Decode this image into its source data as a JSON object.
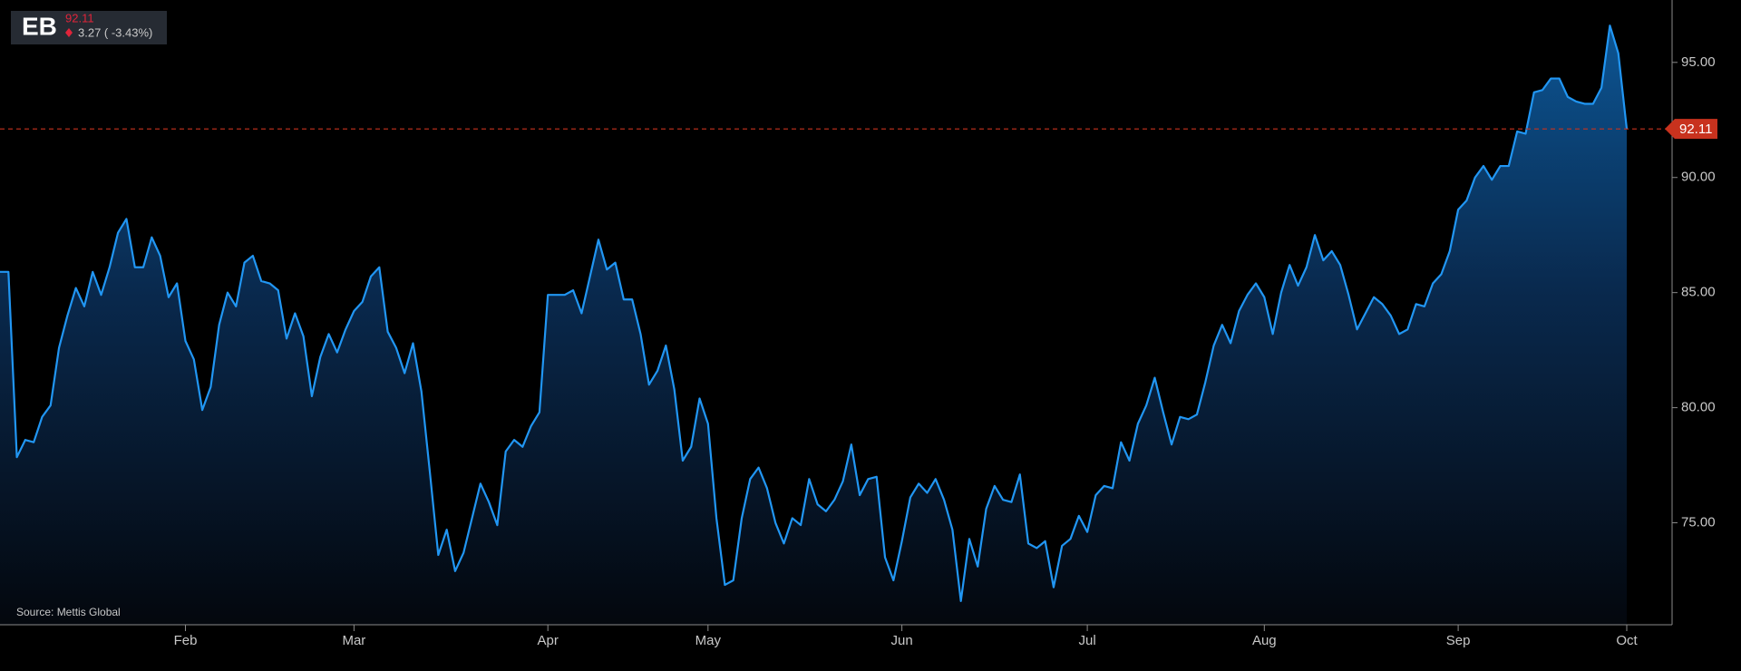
{
  "header": {
    "symbol": "EB",
    "price": "92.11",
    "change": "3.27 ( -3.43%)"
  },
  "chart_data": {
    "type": "area",
    "source": "Source: Mettis Global",
    "categories": [
      null,
      null,
      null,
      null,
      null,
      null,
      null,
      null,
      null,
      null,
      null,
      null,
      null,
      null,
      null,
      null,
      null,
      null,
      null,
      null,
      null,
      null,
      "Feb",
      null,
      null,
      null,
      null,
      null,
      null,
      null,
      null,
      null,
      null,
      null,
      null,
      null,
      null,
      null,
      null,
      null,
      null,
      null,
      "Mar",
      null,
      null,
      null,
      null,
      null,
      null,
      null,
      null,
      null,
      null,
      null,
      null,
      null,
      null,
      null,
      null,
      null,
      null,
      null,
      null,
      null,
      null,
      "Apr",
      null,
      null,
      null,
      null,
      null,
      null,
      null,
      null,
      null,
      null,
      null,
      null,
      null,
      null,
      null,
      null,
      null,
      null,
      "May",
      null,
      null,
      null,
      null,
      null,
      null,
      null,
      null,
      null,
      null,
      null,
      null,
      null,
      null,
      null,
      null,
      null,
      null,
      null,
      null,
      null,
      null,
      "Jun",
      null,
      null,
      null,
      null,
      null,
      null,
      null,
      null,
      null,
      null,
      null,
      null,
      null,
      null,
      null,
      null,
      null,
      null,
      null,
      null,
      null,
      "Jul",
      null,
      null,
      null,
      null,
      null,
      null,
      null,
      null,
      null,
      null,
      null,
      null,
      null,
      null,
      null,
      null,
      null,
      null,
      null,
      null,
      "Aug",
      null,
      null,
      null,
      null,
      null,
      null,
      null,
      null,
      null,
      null,
      null,
      null,
      null,
      null,
      null,
      null,
      null,
      null,
      null,
      null,
      null,
      null,
      "Sep",
      null,
      null,
      null,
      null,
      null,
      null,
      null,
      null,
      null,
      null,
      null,
      null,
      null,
      null,
      null,
      null,
      null,
      null,
      null,
      "Oct"
    ],
    "values": [
      85.9,
      85.9,
      77.85,
      78.6,
      78.5,
      79.6,
      80.1,
      82.6,
      84.0,
      85.2,
      84.4,
      85.9,
      84.9,
      86.1,
      87.6,
      88.2,
      86.1,
      86.1,
      87.4,
      86.6,
      84.8,
      85.4,
      82.9,
      82.1,
      79.9,
      80.9,
      83.6,
      85.0,
      84.4,
      86.3,
      86.6,
      85.5,
      85.4,
      85.1,
      83.0,
      84.1,
      83.1,
      80.5,
      82.2,
      83.2,
      82.4,
      83.4,
      84.2,
      84.6,
      85.7,
      86.1,
      83.3,
      82.6,
      81.5,
      82.8,
      80.7,
      77.2,
      73.6,
      74.7,
      72.9,
      73.7,
      75.2,
      76.7,
      75.9,
      74.9,
      78.1,
      78.6,
      78.3,
      79.2,
      79.8,
      84.9,
      84.9,
      84.9,
      85.1,
      84.1,
      85.7,
      87.3,
      86.0,
      86.3,
      84.7,
      84.7,
      83.2,
      81.0,
      81.6,
      82.7,
      80.8,
      77.7,
      78.3,
      80.4,
      79.3,
      75.2,
      72.3,
      72.5,
      75.2,
      76.9,
      77.4,
      76.5,
      75.0,
      74.1,
      75.2,
      74.9,
      76.9,
      75.8,
      75.5,
      76.0,
      76.8,
      78.4,
      76.2,
      76.9,
      77.0,
      73.5,
      72.5,
      74.2,
      76.1,
      76.7,
      76.3,
      76.9,
      76.0,
      74.7,
      71.6,
      74.3,
      73.1,
      75.6,
      76.6,
      76.0,
      75.9,
      77.1,
      74.1,
      73.9,
      74.2,
      72.2,
      74.0,
      74.3,
      75.3,
      74.6,
      76.2,
      76.6,
      76.5,
      78.5,
      77.7,
      79.3,
      80.1,
      81.3,
      79.8,
      78.4,
      79.6,
      79.5,
      79.7,
      81.1,
      82.7,
      83.6,
      82.8,
      84.2,
      84.9,
      85.4,
      84.8,
      83.2,
      85.0,
      86.2,
      85.3,
      86.1,
      87.5,
      86.4,
      86.8,
      86.2,
      84.9,
      83.4,
      84.1,
      84.8,
      84.5,
      84.0,
      83.2,
      83.4,
      84.5,
      84.4,
      85.4,
      85.8,
      86.8,
      88.6,
      89.0,
      90.0,
      90.5,
      89.9,
      90.5,
      90.5,
      92.0,
      91.9,
      93.7,
      93.8,
      94.3,
      94.3,
      93.5,
      93.3,
      93.2,
      93.2,
      93.9,
      96.6,
      95.4,
      92.11
    ],
    "color": "#2196f3",
    "last_color": "#c8321e",
    "ylim": [
      70.57,
      97.71
    ],
    "yticks": [
      {
        "value": 75,
        "label": "75.00"
      },
      {
        "value": 80,
        "label": "80.00"
      },
      {
        "value": 85,
        "label": "85.00"
      },
      {
        "value": 90,
        "label": "90.00"
      },
      {
        "value": 95,
        "label": "95.00"
      }
    ]
  }
}
